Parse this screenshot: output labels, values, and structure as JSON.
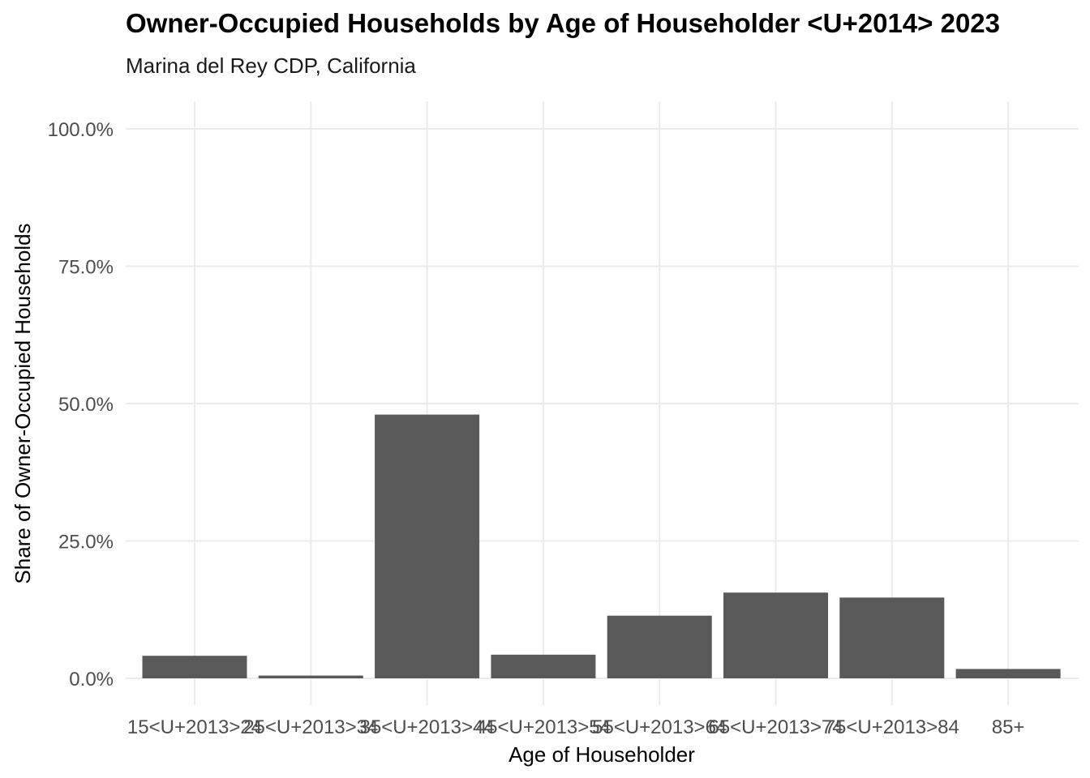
{
  "chart_data": {
    "type": "bar",
    "title": "Owner-Occupied Households by Age of Householder <U+2014> 2023",
    "subtitle": "Marina del Rey CDP, California",
    "xlabel": "Age of Householder",
    "ylabel": "Share of Owner-Occupied Households",
    "categories": [
      "15<U+2013>24",
      "25<U+2013>34",
      "35<U+2013>44",
      "45<U+2013>54",
      "55<U+2013>64",
      "65<U+2013>74",
      "75<U+2013>84",
      "85+"
    ],
    "values": [
      4.1,
      0.5,
      48.0,
      4.3,
      11.4,
      15.6,
      14.7,
      1.7
    ],
    "ylim": [
      0,
      100
    ],
    "yticks": [
      0,
      25,
      50,
      75,
      100
    ],
    "ytick_labels": [
      "0.0%",
      "25.0%",
      "50.0%",
      "75.0%",
      "100.0%"
    ],
    "grid": true,
    "bar_color": "#595959",
    "grid_color": "#ebebeb"
  }
}
